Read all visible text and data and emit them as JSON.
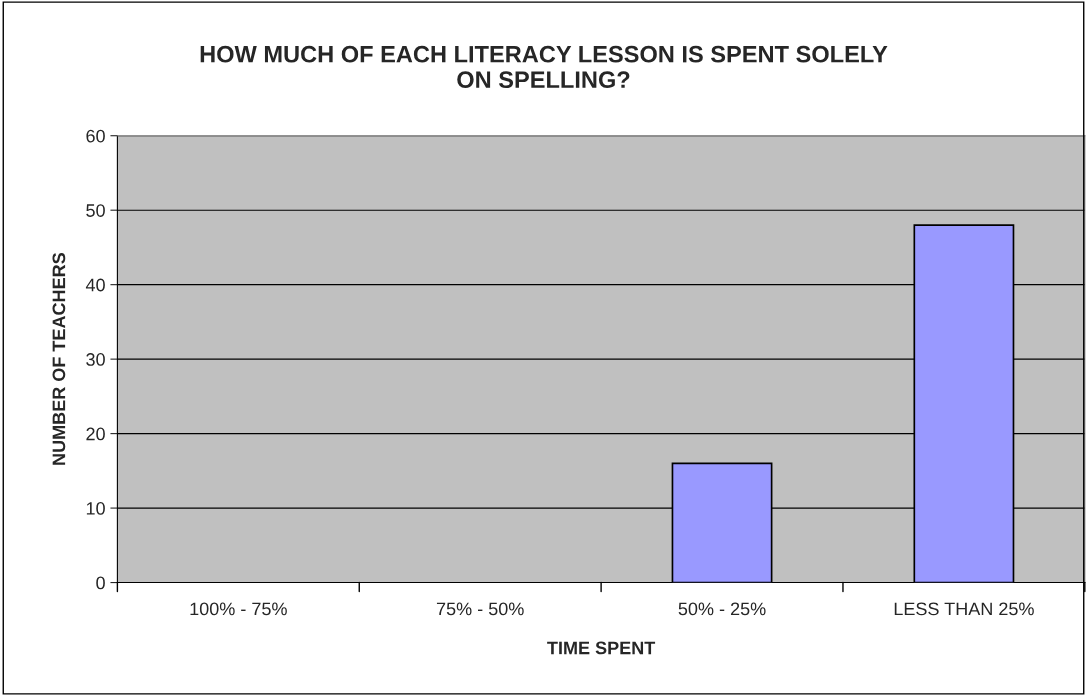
{
  "chart_data": {
    "type": "bar",
    "title": "HOW MUCH OF EACH LITERACY LESSON IS SPENT SOLELY\nON SPELLING?",
    "xlabel": "TIME SPENT",
    "ylabel": "NUMBER OF TEACHERS",
    "categories": [
      "100% - 75%",
      "75% - 50%",
      "50% - 25%",
      "LESS THAN 25%"
    ],
    "values": [
      0,
      0,
      16,
      48
    ],
    "color": "#9999ff",
    "ylim": [
      0,
      60
    ],
    "yticks": [
      0,
      10,
      20,
      30,
      40,
      50,
      60
    ],
    "grid": "y",
    "legend": false
  }
}
